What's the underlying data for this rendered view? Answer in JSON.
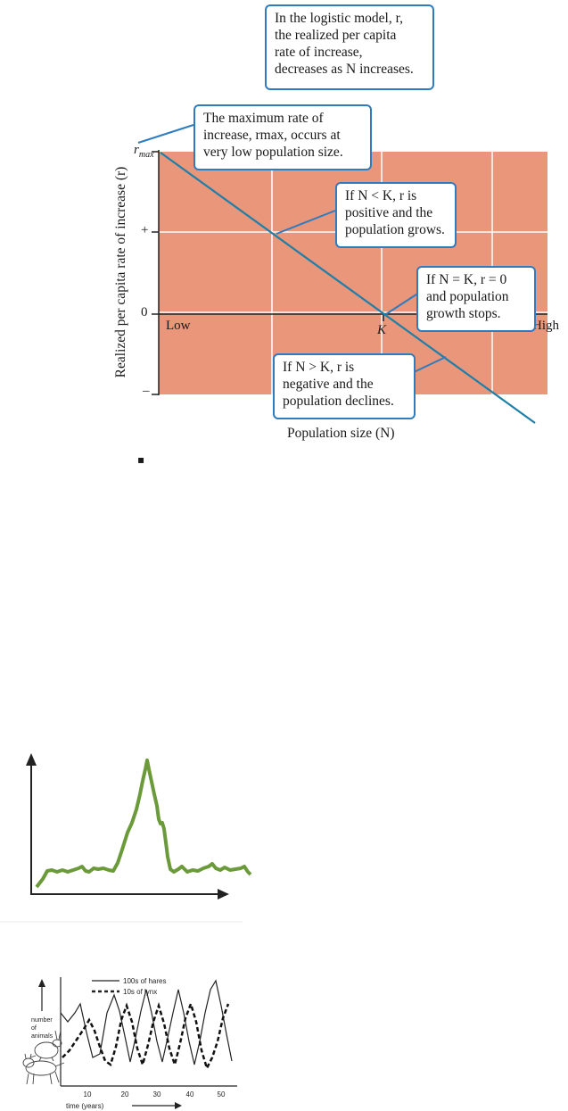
{
  "logistic": {
    "colors": {
      "plot_fill": "#e9967a",
      "grid": "#ffffff",
      "line": "#1e7fa8",
      "callout_border": "#2f7bbf"
    },
    "y_axis_label": "Realized per capita rate of increase (r)",
    "x_axis_label": "Population size (N)",
    "y_ticks": {
      "rmax_r": "r",
      "rmax_sub": "max",
      "plus": "+",
      "zero": "0",
      "minus": "–"
    },
    "x_ticks": {
      "low": "Low",
      "k": "K",
      "high": "High"
    },
    "callouts": {
      "top": [
        "In the logistic model, r,",
        "the realized per capita",
        "rate of increase,",
        "decreases as N increases."
      ],
      "max": [
        "The maximum rate of",
        "increase, rmax, occurs at",
        "very low population size."
      ],
      "less": [
        "If N < K, r is",
        "positive and the",
        "population grows."
      ],
      "equal": [
        "If N = K, r = 0",
        "and population",
        "growth stops."
      ],
      "greater": [
        "If N > K, r is",
        "negative and the",
        "population declines."
      ]
    },
    "bullet": "▪"
  },
  "spike": {
    "color": "#6b9a3a"
  },
  "hare_lynx": {
    "legend": {
      "hares": "100s of hares",
      "lynx": "10s of lynx"
    },
    "ylabel": [
      "number",
      "of",
      "animals"
    ],
    "xlabel": "time (years)",
    "x_ticks": [
      "10",
      "20",
      "30",
      "40",
      "50"
    ]
  }
}
